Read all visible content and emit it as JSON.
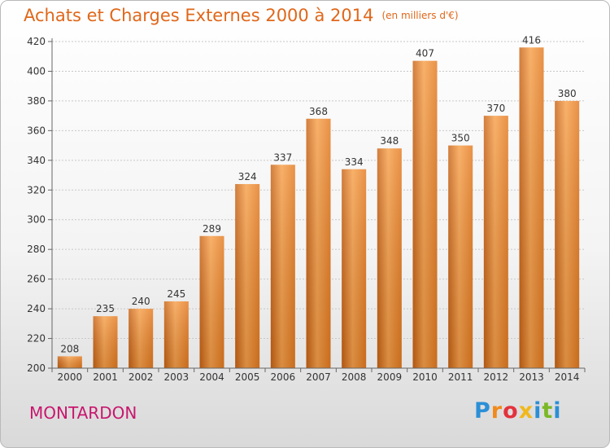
{
  "chart_data": {
    "type": "bar",
    "title": "Achats et Charges Externes 2000 à 2014",
    "subtitle": "(en milliers d'€)",
    "categories": [
      "2000",
      "2001",
      "2002",
      "2003",
      "2004",
      "2005",
      "2006",
      "2007",
      "2008",
      "2009",
      "2010",
      "2011",
      "2012",
      "2013",
      "2014"
    ],
    "values": [
      208,
      235,
      240,
      245,
      289,
      324,
      337,
      368,
      334,
      348,
      407,
      350,
      370,
      416,
      380
    ],
    "ylim": [
      200,
      420
    ],
    "yticks": [
      200,
      220,
      240,
      260,
      280,
      300,
      320,
      340,
      360,
      380,
      400,
      420
    ],
    "grid": true,
    "bar_color": "#f0821f"
  },
  "location": "MONTARDON",
  "logo": {
    "letters": [
      "P",
      "r",
      "o",
      "x",
      "i",
      "t",
      "i"
    ],
    "colors": [
      "#2b8fd6",
      "#f08a1c",
      "#e3323c",
      "#f0b81c",
      "#2b8fd6",
      "#7ab828",
      "#2b8fd6"
    ]
  }
}
